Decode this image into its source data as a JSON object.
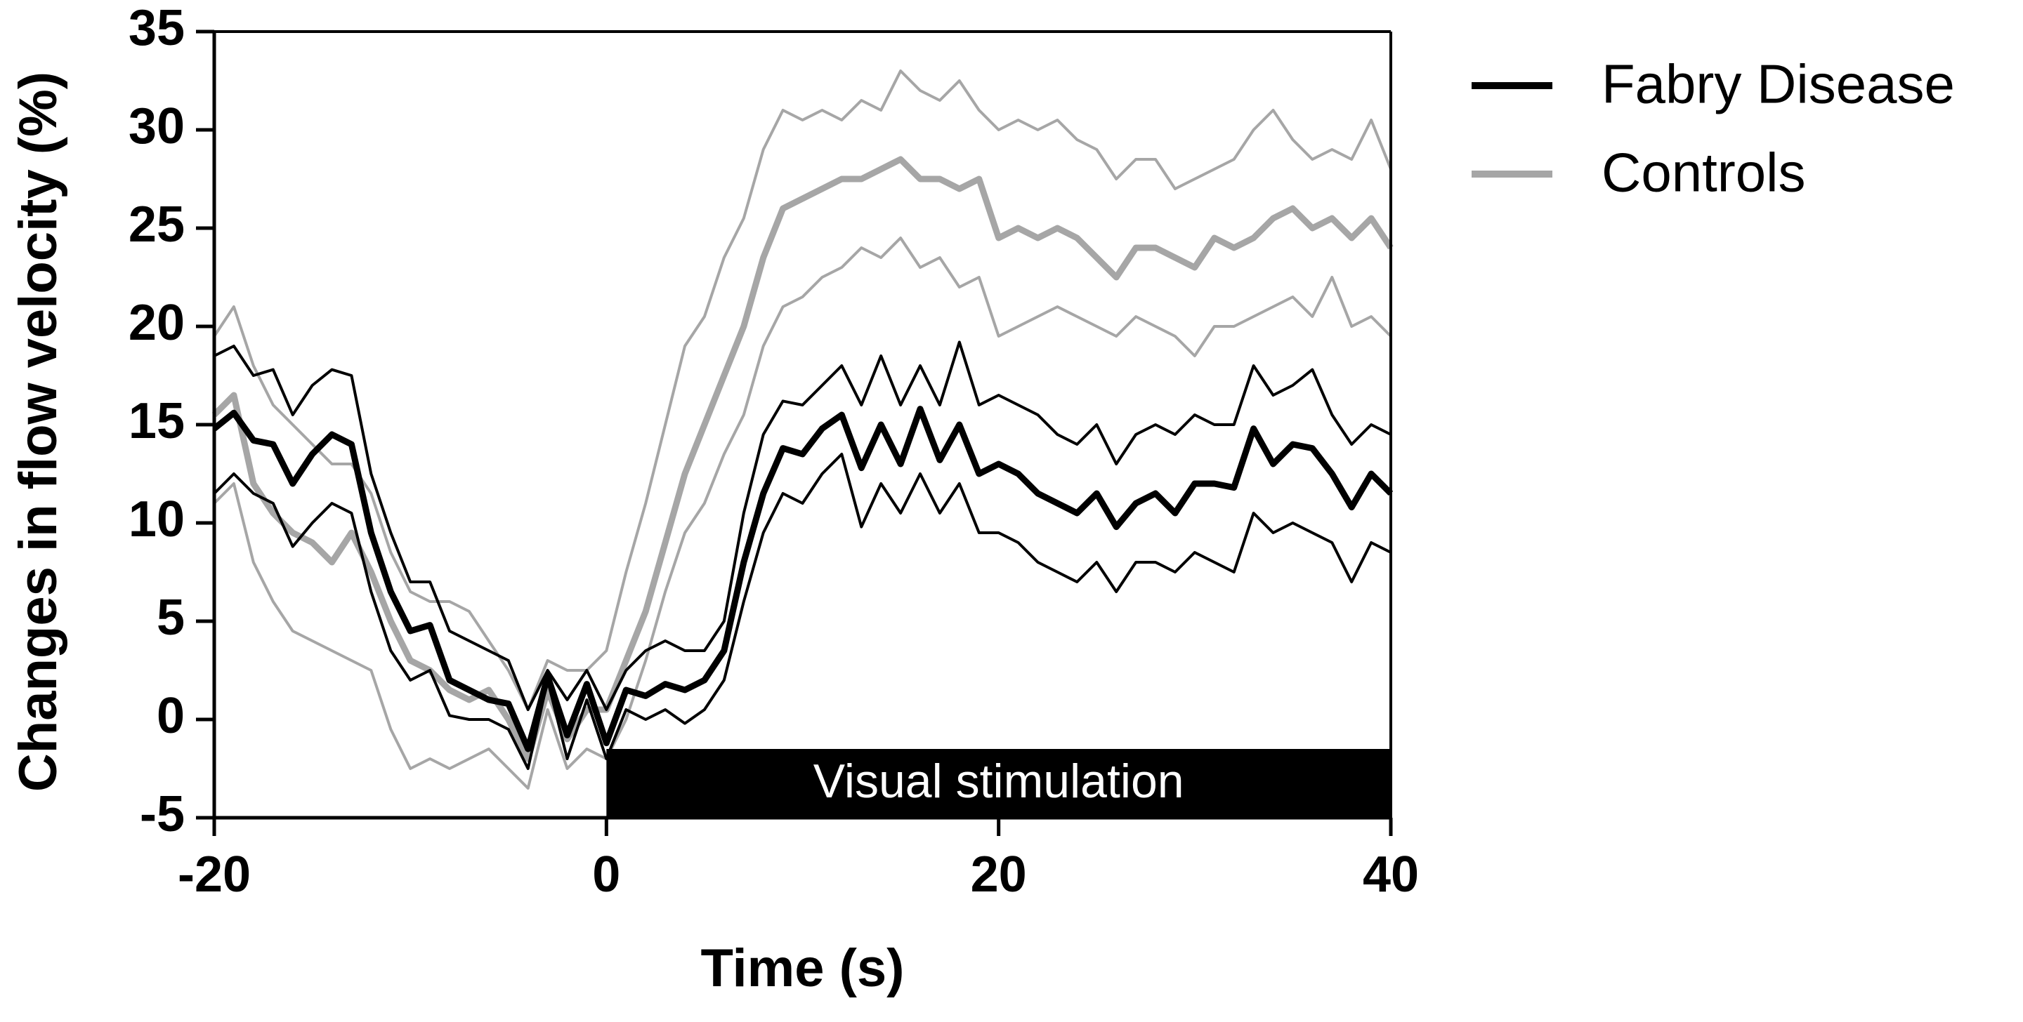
{
  "chart_data": {
    "type": "line",
    "title": "",
    "xlabel": "Time (s)",
    "ylabel": "Changes in flow velocity (%)",
    "xlim": [
      -20,
      40
    ],
    "ylim": [
      -5,
      35
    ],
    "xticks": [
      -20,
      0,
      20,
      40
    ],
    "yticks": [
      -5,
      0,
      5,
      10,
      15,
      20,
      25,
      30,
      35
    ],
    "grid": false,
    "legend_position": "top-right, outside plot",
    "annotation": {
      "text": "Visual stimulation",
      "x_start": 0,
      "x_end": 40,
      "y_bottom": -5,
      "y_top": -1.5
    },
    "series": [
      {
        "name": "Fabry Disease",
        "color": "#000000",
        "x": [
          -20,
          -19,
          -18,
          -17,
          -16,
          -15,
          -14,
          -13,
          -12,
          -11,
          -10,
          -9,
          -8,
          -7,
          -6,
          -5,
          -4,
          -3,
          -2,
          -1,
          0,
          1,
          2,
          3,
          4,
          5,
          6,
          7,
          8,
          9,
          10,
          11,
          12,
          13,
          14,
          15,
          16,
          17,
          18,
          19,
          20,
          21,
          22,
          23,
          24,
          25,
          26,
          27,
          28,
          29,
          30,
          31,
          32,
          33,
          34,
          35,
          36,
          37,
          38,
          39,
          40
        ],
        "mean": [
          14.8,
          15.6,
          14.2,
          14.0,
          12.0,
          13.5,
          14.5,
          14.0,
          9.5,
          6.5,
          4.5,
          4.8,
          2.0,
          1.5,
          1.0,
          0.8,
          -1.5,
          2.2,
          -0.8,
          1.8,
          -1.2,
          1.5,
          1.2,
          1.8,
          1.5,
          2.0,
          3.5,
          8.0,
          11.5,
          13.8,
          13.5,
          14.8,
          15.5,
          12.8,
          15.0,
          13.0,
          15.8,
          13.2,
          15.0,
          12.5,
          13.0,
          12.5,
          11.5,
          11.0,
          10.5,
          11.5,
          9.8,
          11.0,
          11.5,
          10.5,
          12.0,
          12.0,
          11.8,
          14.8,
          13.0,
          14.0,
          13.8,
          12.5,
          10.8,
          12.5,
          11.5
        ],
        "upper": [
          18.5,
          19.0,
          17.5,
          17.8,
          15.5,
          17.0,
          17.8,
          17.5,
          12.5,
          9.5,
          7.0,
          7.0,
          4.5,
          4.0,
          3.5,
          3.0,
          0.5,
          2.5,
          1.0,
          2.5,
          0.5,
          2.5,
          3.5,
          4.0,
          3.5,
          3.5,
          5.0,
          10.5,
          14.5,
          16.2,
          16.0,
          17.0,
          18.0,
          16.0,
          18.5,
          16.0,
          18.0,
          16.0,
          19.2,
          16.0,
          16.5,
          16.0,
          15.5,
          14.5,
          14.0,
          15.0,
          13.0,
          14.5,
          15.0,
          14.5,
          15.5,
          15.0,
          15.0,
          18.0,
          16.5,
          17.0,
          17.8,
          15.5,
          14.0,
          15.0,
          14.5
        ],
        "lower": [
          11.5,
          12.5,
          11.5,
          11.0,
          8.8,
          10.0,
          11.0,
          10.5,
          6.5,
          3.5,
          2.0,
          2.5,
          0.2,
          0.0,
          0.0,
          -0.5,
          -2.5,
          2.0,
          -2.0,
          1.0,
          -2.0,
          0.5,
          0.0,
          0.5,
          -0.2,
          0.5,
          2.0,
          6.0,
          9.5,
          11.5,
          11.0,
          12.5,
          13.5,
          9.8,
          12.0,
          10.5,
          12.5,
          10.5,
          12.0,
          9.5,
          9.5,
          9.0,
          8.0,
          7.5,
          7.0,
          8.0,
          6.5,
          8.0,
          8.0,
          7.5,
          8.5,
          8.0,
          7.5,
          10.5,
          9.5,
          10.0,
          9.5,
          9.0,
          7.0,
          9.0,
          8.5
        ]
      },
      {
        "name": "Controls",
        "color": "#a6a6a6",
        "x": [
          -20,
          -19,
          -18,
          -17,
          -16,
          -15,
          -14,
          -13,
          -12,
          -11,
          -10,
          -9,
          -8,
          -7,
          -6,
          -5,
          -4,
          -3,
          -2,
          -1,
          0,
          1,
          2,
          3,
          4,
          5,
          6,
          7,
          8,
          9,
          10,
          11,
          12,
          13,
          14,
          15,
          16,
          17,
          18,
          19,
          20,
          21,
          22,
          23,
          24,
          25,
          26,
          27,
          28,
          29,
          30,
          31,
          32,
          33,
          34,
          35,
          36,
          37,
          38,
          39,
          40
        ],
        "mean": [
          15.5,
          16.5,
          12.0,
          10.5,
          9.5,
          9.0,
          8.0,
          9.5,
          7.5,
          5.0,
          3.0,
          2.5,
          1.5,
          1.0,
          1.5,
          0.0,
          -2.0,
          1.5,
          -1.0,
          0.5,
          0.5,
          3.0,
          5.5,
          9.0,
          12.5,
          15.0,
          17.5,
          20.0,
          23.5,
          26.0,
          26.5,
          27.0,
          27.5,
          27.5,
          28.0,
          28.5,
          27.5,
          27.5,
          27.0,
          27.5,
          24.5,
          25.0,
          24.5,
          25.0,
          24.5,
          23.5,
          22.5,
          24.0,
          24.0,
          23.5,
          23.0,
          24.5,
          24.0,
          24.5,
          25.5,
          26.0,
          25.0,
          25.5,
          24.5,
          25.5,
          24.0
        ],
        "upper": [
          19.5,
          21.0,
          18.0,
          16.0,
          15.0,
          14.0,
          13.0,
          13.0,
          11.5,
          8.5,
          6.5,
          6.0,
          6.0,
          5.5,
          4.0,
          2.5,
          0.5,
          3.0,
          2.5,
          2.5,
          3.5,
          7.5,
          11.0,
          15.0,
          19.0,
          20.5,
          23.5,
          25.5,
          29.0,
          31.0,
          30.5,
          31.0,
          30.5,
          31.5,
          31.0,
          33.0,
          32.0,
          31.5,
          32.5,
          31.0,
          30.0,
          30.5,
          30.0,
          30.5,
          29.5,
          29.0,
          27.5,
          28.5,
          28.5,
          27.0,
          27.5,
          28.0,
          28.5,
          30.0,
          31.0,
          29.5,
          28.5,
          29.0,
          28.5,
          30.5,
          28.0
        ],
        "lower": [
          11.0,
          12.0,
          8.0,
          6.0,
          4.5,
          4.0,
          3.5,
          3.0,
          2.5,
          -0.5,
          -2.5,
          -2.0,
          -2.5,
          -2.0,
          -1.5,
          -2.5,
          -3.5,
          0.5,
          -2.5,
          -1.5,
          -2.0,
          0.0,
          3.0,
          6.5,
          9.5,
          11.0,
          13.5,
          15.5,
          19.0,
          21.0,
          21.5,
          22.5,
          23.0,
          24.0,
          23.5,
          24.5,
          23.0,
          23.5,
          22.0,
          22.5,
          19.5,
          20.0,
          20.5,
          21.0,
          20.5,
          20.0,
          19.5,
          20.5,
          20.0,
          19.5,
          18.5,
          20.0,
          20.0,
          20.5,
          21.0,
          21.5,
          20.5,
          22.5,
          20.0,
          20.5,
          19.5
        ]
      }
    ]
  }
}
